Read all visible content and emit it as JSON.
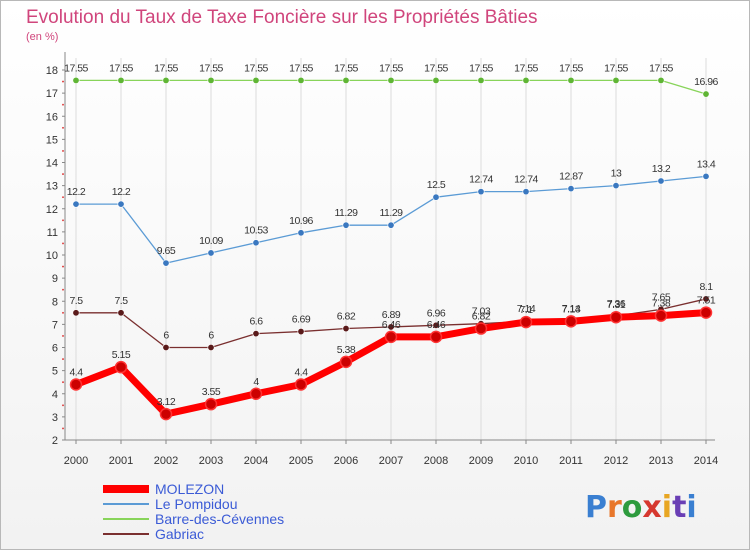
{
  "chart_data": {
    "type": "line",
    "title": "Evolution du Taux de Taxe Foncière sur les Propriétés Bâties",
    "unit_label": "(en %)",
    "x": [
      "2000",
      "2001",
      "2002",
      "2003",
      "2004",
      "2005",
      "2006",
      "2007",
      "2008",
      "2009",
      "2010",
      "2011",
      "2012",
      "2013",
      "2014"
    ],
    "ylim": [
      2,
      18
    ],
    "yticks": [
      "2",
      "3",
      "4",
      "5",
      "6",
      "7",
      "8",
      "9",
      "10",
      "11",
      "12",
      "13",
      "14",
      "15",
      "16",
      "17",
      "18"
    ],
    "series": [
      {
        "name": "MOLEZON",
        "color": "#ff0000",
        "marker": "#cc0000",
        "values": [
          4.4,
          5.15,
          3.12,
          3.55,
          4,
          4.4,
          5.38,
          6.46,
          6.46,
          6.82,
          7.1,
          7.13,
          7.31,
          7.38,
          7.51
        ],
        "labels": [
          "4.4",
          "5.15",
          "3.12",
          "3.55",
          "4",
          "4.4",
          "5.38",
          "6.46",
          "6.46",
          "6.82",
          "7.1",
          "7.13",
          "7.31",
          "7.38",
          "7.51"
        ]
      },
      {
        "name": "Le Pompidou",
        "color": "#5b9bd5",
        "marker": "#3a78c0",
        "values": [
          12.2,
          12.2,
          9.65,
          10.09,
          10.53,
          10.96,
          11.29,
          11.29,
          12.5,
          12.74,
          12.74,
          12.87,
          13,
          13.2,
          13.4
        ],
        "labels": [
          "12.2",
          "12.2",
          "9.65",
          "10.09",
          "10.53",
          "10.96",
          "11.29",
          "11.29",
          "12.5",
          "12.74",
          "12.74",
          "12.87",
          "13",
          "13.2",
          "13.4"
        ]
      },
      {
        "name": "Barre-des-Cévennes",
        "color": "#88d45a",
        "marker": "#5fb534",
        "values": [
          17.55,
          17.55,
          17.55,
          17.55,
          17.55,
          17.55,
          17.55,
          17.55,
          17.55,
          17.55,
          17.55,
          17.55,
          17.55,
          17.55,
          16.96
        ],
        "labels": [
          "17.55",
          "17.55",
          "17.55",
          "17.55",
          "17.55",
          "17.55",
          "17.55",
          "17.55",
          "17.55",
          "17.55",
          "17.55",
          "17.55",
          "17.55",
          "17.55",
          "16.96"
        ]
      },
      {
        "name": "Gabriac",
        "color": "#7a2f2f",
        "marker": "#5a1a1a",
        "values": [
          7.5,
          7.5,
          6,
          6,
          6.6,
          6.69,
          6.82,
          6.89,
          6.96,
          7.03,
          7.14,
          7.14,
          7.36,
          7.65,
          8.1
        ],
        "labels": [
          "7.5",
          "7.5",
          "6",
          "6",
          "6.6",
          "6.69",
          "6.82",
          "6.89",
          "6.96",
          "7.03",
          "7.14",
          "7.14",
          "7.36",
          "7.65",
          "8.1"
        ]
      }
    ],
    "legend_position": "bottom-left"
  },
  "logo": {
    "text": "Proxiti",
    "letters": [
      "P",
      "r",
      "o",
      "x",
      "i",
      "t",
      "i"
    ],
    "colors": [
      "#3a7fd1",
      "#e8772b",
      "#2e9b3e",
      "#d6382f",
      "#e8a623",
      "#6a3fb5",
      "#3a7fd1"
    ]
  }
}
